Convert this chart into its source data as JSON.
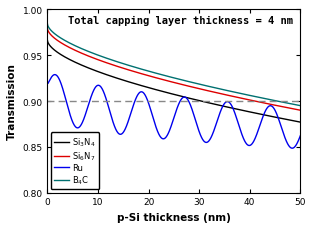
{
  "title": "Total capping layer thickness = 4 nm",
  "xlabel": "p-Si thickness (nm)",
  "ylabel": "Transmission",
  "xlim": [
    0,
    50
  ],
  "ylim": [
    0.8,
    1.0
  ],
  "yticks": [
    0.8,
    0.85,
    0.9,
    0.95,
    1.0
  ],
  "xticks": [
    0,
    10,
    20,
    30,
    40,
    50
  ],
  "dashed_line_y": 0.9,
  "lines": [
    {
      "label": "Si$_3$N$_4$",
      "color": "#000000",
      "y_start": 0.966,
      "y_end": 0.877,
      "decay_exp": 0.6,
      "oscillation": false
    },
    {
      "label": "Si$_6$N$_7$",
      "color": "#dd0000",
      "y_start": 0.979,
      "y_end": 0.89,
      "decay_exp": 0.6,
      "oscillation": false
    },
    {
      "label": "Ru",
      "color": "#0000ee",
      "y_start": 0.91,
      "y_end": 0.87,
      "decay_exp": 0.5,
      "oscillation": true,
      "amp_start": 0.026,
      "amp_end": 0.022,
      "period": 8.5,
      "phase": -1.2
    },
    {
      "label": "B$_4$C",
      "color": "#007070",
      "y_start": 0.984,
      "y_end": 0.895,
      "decay_exp": 0.6,
      "oscillation": false
    }
  ],
  "background_color": "#ffffff",
  "legend_fontsize": 6.0,
  "title_fontsize": 7.5,
  "axis_fontsize": 7.5,
  "tick_fontsize": 6.5
}
